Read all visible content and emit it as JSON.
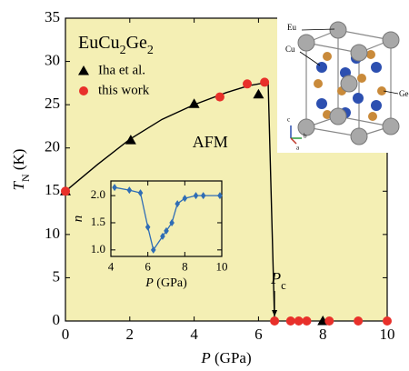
{
  "chart_data": [
    {
      "type": "scatter",
      "title": "EuCu2Ge2",
      "x_label": "P (GPa)",
      "y_label": "TN (K)",
      "xlim": [
        0,
        10
      ],
      "xticks": [
        0,
        2,
        4,
        6,
        8,
        10
      ],
      "ylim": [
        0,
        35
      ],
      "yticks": [
        0,
        5,
        10,
        15,
        20,
        25,
        30,
        35
      ],
      "background": "#f4efb4",
      "legend": "upper left",
      "series": [
        {
          "name": "Iha et al.",
          "color": "#000000",
          "marker": "triangle",
          "x": [
            0,
            2.03,
            4.0,
            6.0,
            8.0
          ],
          "values": [
            15,
            20.9,
            25.1,
            26.2,
            0
          ]
        },
        {
          "name": "this work",
          "color": "#e8302a",
          "marker": "circle",
          "x": [
            0,
            4.8,
            5.65,
            6.19,
            6.5,
            7.0,
            7.25,
            7.5,
            8.2,
            9.1,
            10.0
          ],
          "values": [
            15,
            25.9,
            27.4,
            27.6,
            0,
            0,
            0,
            0,
            0,
            0,
            0
          ]
        }
      ],
      "curve": {
        "color": "#000000",
        "x": [
          0,
          1,
          2,
          3,
          4,
          5,
          5.7,
          6.3,
          6.5
        ],
        "values": [
          15,
          18.1,
          21,
          23.3,
          25,
          26.4,
          27.2,
          27.6,
          0
        ]
      },
      "annotations": [
        "AFM",
        "Pc"
      ]
    },
    {
      "type": "line",
      "x_label": "P (GPa)",
      "y_label": "n",
      "xlim": [
        4,
        10
      ],
      "xticks": [
        4,
        6,
        8,
        10
      ],
      "ylim": [
        0.88,
        2.27
      ],
      "yticks": [
        {
          "value": 1,
          "label": "1.0"
        },
        1.5,
        {
          "value": 2,
          "label": "2.0"
        }
      ],
      "series": [
        {
          "color": "#2f6db5",
          "marker": "diamond",
          "x": [
            4.2,
            5,
            5.6,
            6.0,
            6.3,
            6.8,
            7.0,
            7.3,
            7.6,
            8.0,
            8.6,
            9.0,
            9.9
          ],
          "values": [
            2.15,
            2.1,
            2.05,
            1.42,
            1.0,
            1.25,
            1.35,
            1.5,
            1.85,
            1.95,
            2.0,
            2.0,
            2.0
          ]
        }
      ]
    }
  ],
  "structure": {
    "labels": [
      "Eu",
      "Cu",
      "Ge"
    ],
    "axes": [
      "c",
      "b",
      "a"
    ]
  }
}
